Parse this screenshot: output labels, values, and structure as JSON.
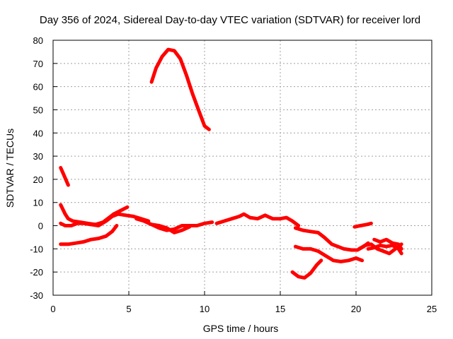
{
  "chart_data": {
    "type": "line",
    "title": "Day 356 of 2024, Sidereal Day-to-day VTEC variation (SDTVAR) for receiver lord",
    "xlabel": "GPS time / hours",
    "ylabel": "SDTVAR / TECUs",
    "xlim": [
      0,
      25
    ],
    "ylim": [
      -30,
      80
    ],
    "xticks": [
      0,
      5,
      10,
      15,
      20,
      25
    ],
    "yticks": [
      -30,
      -20,
      -10,
      0,
      10,
      20,
      30,
      40,
      50,
      60,
      70,
      80
    ],
    "grid": true,
    "color": "#ff0000",
    "series": [
      {
        "name": "s1",
        "points": [
          [
            0.5,
            25
          ],
          [
            0.7,
            22
          ],
          [
            0.9,
            19
          ],
          [
            1.0,
            17.5
          ]
        ]
      },
      {
        "name": "s2",
        "points": [
          [
            6.5,
            62
          ],
          [
            6.8,
            68
          ],
          [
            7.2,
            73
          ],
          [
            7.6,
            76
          ],
          [
            8.0,
            75.5
          ],
          [
            8.4,
            72
          ],
          [
            8.8,
            65
          ],
          [
            9.2,
            57
          ],
          [
            9.6,
            50
          ],
          [
            10.0,
            43
          ],
          [
            10.3,
            41.5
          ]
        ]
      },
      {
        "name": "s3",
        "points": [
          [
            0.5,
            9
          ],
          [
            0.8,
            5
          ],
          [
            1.0,
            3
          ],
          [
            1.3,
            2
          ],
          [
            1.8,
            1.5
          ],
          [
            2.3,
            1
          ],
          [
            2.8,
            0.5
          ],
          [
            3.3,
            1.5
          ],
          [
            3.6,
            3
          ],
          [
            4.0,
            5
          ],
          [
            4.3,
            6
          ],
          [
            4.6,
            7
          ],
          [
            4.9,
            8
          ]
        ]
      },
      {
        "name": "s4",
        "points": [
          [
            0.5,
            1
          ],
          [
            0.8,
            0
          ],
          [
            1.2,
            0
          ],
          [
            1.6,
            1
          ],
          [
            2.0,
            1
          ],
          [
            2.5,
            0.5
          ],
          [
            3.0,
            0
          ],
          [
            3.5,
            2
          ],
          [
            3.9,
            4
          ],
          [
            4.3,
            5
          ],
          [
            4.8,
            4.5
          ],
          [
            5.3,
            4
          ],
          [
            5.8,
            3
          ],
          [
            6.3,
            2
          ]
        ]
      },
      {
        "name": "s5",
        "points": [
          [
            0.5,
            -8
          ],
          [
            1.0,
            -8
          ],
          [
            1.5,
            -7.5
          ],
          [
            2.0,
            -7
          ],
          [
            2.5,
            -6
          ],
          [
            3.0,
            -5.5
          ],
          [
            3.5,
            -4.5
          ],
          [
            3.9,
            -2.5
          ],
          [
            4.2,
            0
          ]
        ]
      },
      {
        "name": "s6",
        "points": [
          [
            5.5,
            3
          ],
          [
            6.0,
            2
          ],
          [
            6.5,
            0.5
          ],
          [
            7.0,
            -1
          ],
          [
            7.5,
            -2
          ],
          [
            8.0,
            -1.5
          ],
          [
            8.5,
            0
          ],
          [
            9.0,
            0
          ],
          [
            9.5,
            0
          ],
          [
            10.0,
            1
          ],
          [
            10.5,
            1.5
          ]
        ]
      },
      {
        "name": "s7",
        "points": [
          [
            6.5,
            0.5
          ],
          [
            7.0,
            0
          ],
          [
            7.5,
            -1
          ],
          [
            8.0,
            -3
          ],
          [
            8.5,
            -2
          ],
          [
            9.0,
            -0.5
          ]
        ]
      },
      {
        "name": "s8",
        "points": [
          [
            10.8,
            1
          ],
          [
            11.3,
            2
          ],
          [
            11.8,
            3
          ],
          [
            12.3,
            4
          ],
          [
            12.6,
            5
          ],
          [
            13.0,
            3.5
          ],
          [
            13.5,
            3
          ],
          [
            14.0,
            4.5
          ],
          [
            14.5,
            3
          ],
          [
            15.0,
            3
          ],
          [
            15.4,
            3.5
          ],
          [
            15.8,
            2
          ],
          [
            16.2,
            0
          ]
        ]
      },
      {
        "name": "s9",
        "points": [
          [
            16.0,
            -1
          ],
          [
            16.5,
            -2
          ],
          [
            17.0,
            -2.5
          ],
          [
            17.5,
            -3
          ],
          [
            17.9,
            -5
          ],
          [
            18.4,
            -8
          ],
          [
            18.8,
            -9
          ],
          [
            19.2,
            -10
          ],
          [
            19.7,
            -10.5
          ],
          [
            20.1,
            -10.5
          ],
          [
            20.5,
            -9
          ],
          [
            20.8,
            -7.5
          ]
        ]
      },
      {
        "name": "s10",
        "points": [
          [
            16.0,
            -9
          ],
          [
            16.5,
            -10
          ],
          [
            17.0,
            -10
          ],
          [
            17.5,
            -11
          ],
          [
            18.0,
            -13
          ],
          [
            18.5,
            -15
          ],
          [
            19.0,
            -15.5
          ],
          [
            19.5,
            -15
          ],
          [
            20.0,
            -14
          ],
          [
            20.4,
            -15
          ]
        ]
      },
      {
        "name": "s11",
        "points": [
          [
            15.8,
            -20
          ],
          [
            16.2,
            -22
          ],
          [
            16.6,
            -22.5
          ],
          [
            17.0,
            -20.5
          ],
          [
            17.4,
            -17
          ],
          [
            17.7,
            -15
          ]
        ]
      },
      {
        "name": "s12",
        "points": [
          [
            19.9,
            -0.5
          ],
          [
            20.3,
            0
          ],
          [
            20.7,
            0.5
          ],
          [
            21.0,
            1
          ]
        ]
      },
      {
        "name": "s13",
        "points": [
          [
            20.8,
            -10
          ],
          [
            21.2,
            -9.5
          ],
          [
            21.6,
            -8.5
          ],
          [
            22.0,
            -9
          ],
          [
            22.4,
            -8.5
          ],
          [
            22.8,
            -10
          ],
          [
            23.0,
            -12
          ]
        ]
      },
      {
        "name": "s14",
        "points": [
          [
            21.2,
            -6
          ],
          [
            21.6,
            -7
          ],
          [
            22.0,
            -6
          ],
          [
            22.4,
            -7.5
          ],
          [
            22.8,
            -8
          ],
          [
            23.0,
            -10
          ]
        ]
      },
      {
        "name": "s15",
        "points": [
          [
            20.2,
            -10
          ],
          [
            20.6,
            -8.5
          ],
          [
            21.0,
            -8
          ],
          [
            21.4,
            -10
          ],
          [
            21.8,
            -11
          ],
          [
            22.2,
            -12
          ],
          [
            22.6,
            -10
          ],
          [
            23.0,
            -8
          ]
        ]
      }
    ]
  }
}
